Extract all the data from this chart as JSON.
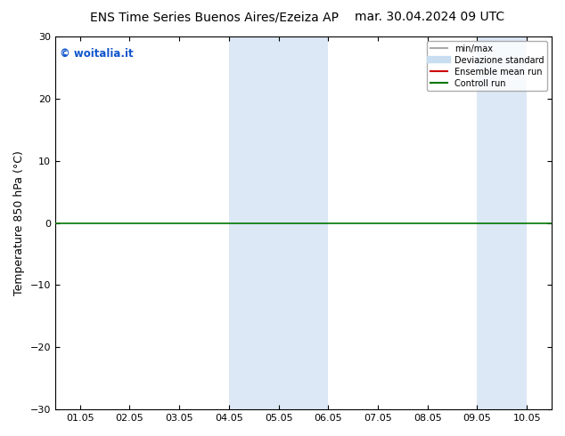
{
  "title_left": "ENS Time Series Buenos Aires/Ezeiza AP",
  "title_right": "mar. 30.04.2024 09 UTC",
  "ylabel": "Temperature 850 hPa (°C)",
  "ylim": [
    -30,
    30
  ],
  "yticks": [
    -30,
    -20,
    -10,
    0,
    10,
    20,
    30
  ],
  "xtick_labels": [
    "01.05",
    "02.05",
    "03.05",
    "04.05",
    "05.05",
    "06.05",
    "07.05",
    "08.05",
    "09.05",
    "10.05"
  ],
  "background_color": "#ffffff",
  "plot_bg_color": "#ffffff",
  "shaded_bands": [
    {
      "xmin": 3,
      "xmax": 5,
      "color": "#dce8f5"
    },
    {
      "xmin": 8,
      "xmax": 9,
      "color": "#dce8f5"
    }
  ],
  "hline_y": 0,
  "hline_color": "#007700",
  "hline_lw": 1.2,
  "copyright_text": "© woitalia.it",
  "copyright_color": "#1155cc",
  "legend_items": [
    {
      "label": "min/max",
      "color": "#aaaaaa",
      "lw": 1.5,
      "ls": "-"
    },
    {
      "label": "Deviazione standard",
      "color": "#c8ddf0",
      "lw": 6,
      "ls": "-"
    },
    {
      "label": "Ensemble mean run",
      "color": "#cc0000",
      "lw": 1.5,
      "ls": "-"
    },
    {
      "label": "Controll run",
      "color": "#007700",
      "lw": 1.5,
      "ls": "-"
    }
  ],
  "title_fontsize": 10,
  "label_fontsize": 9,
  "tick_fontsize": 8
}
